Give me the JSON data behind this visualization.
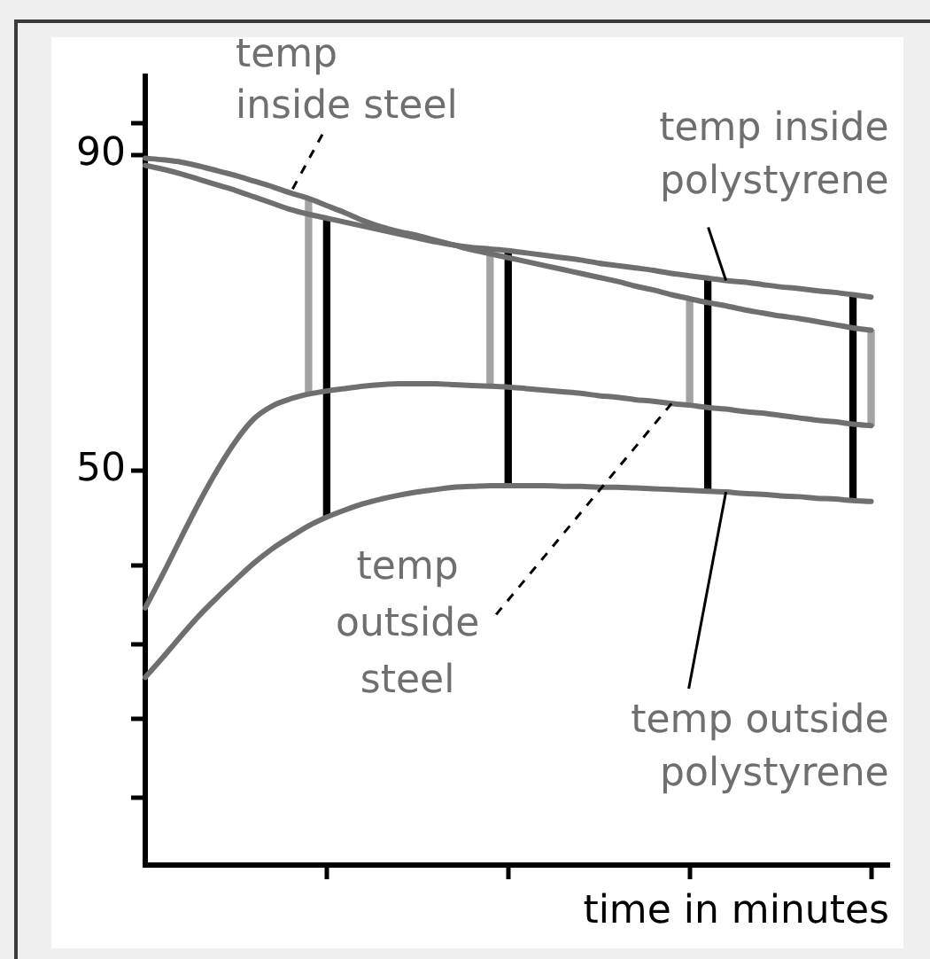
{
  "chart_data": {
    "type": "line",
    "xlabel": "time in minutes",
    "categories": [
      null,
      null,
      null,
      null,
      null,
      null,
      null,
      null,
      null,
      null,
      null,
      null,
      null,
      null,
      null,
      null,
      null,
      null,
      null,
      null,
      null,
      null,
      null,
      null,
      null,
      null,
      null,
      null,
      null,
      null,
      null,
      null,
      null,
      null,
      null,
      null,
      null,
      null,
      null,
      null,
      null,
      null
    ],
    "ylim": [
      0,
      100
    ],
    "yticks": [
      {
        "value": 8.5,
        "label": null
      },
      {
        "value": 18.5,
        "label": null
      },
      {
        "value": 28,
        "label": null
      },
      {
        "value": 38,
        "label": null
      },
      50,
      90,
      {
        "value": 94,
        "label": null
      }
    ],
    "tick_labels": "y",
    "grid": false,
    "marker": "none",
    "series": [
      {
        "name": "temp inside steel",
        "color": "#6f6f6f",
        "values": [
          89.6,
          89.4,
          89.1,
          88.6,
          88.0,
          87.4,
          86.7,
          86.0,
          85.2,
          84.5,
          83.6,
          82.7,
          81.7,
          80.9,
          80.3,
          79.8,
          79.2,
          78.6,
          78.0,
          77.5,
          77.0,
          76.5,
          76.0,
          75.5,
          75.0,
          74.5,
          74.0,
          73.4,
          72.9,
          72.3,
          71.8,
          71.3,
          70.9,
          70.4,
          70.0,
          69.6,
          69.3,
          68.9,
          68.5,
          68.1,
          67.8,
          null
        ]
      },
      {
        "name": "temp inside polystyrene",
        "color": "#6f6f6f",
        "values": [
          88.7,
          88.2,
          87.6,
          86.9,
          86.2,
          85.5,
          84.7,
          83.9,
          83.1,
          82.5,
          82.0,
          81.5,
          81.0,
          80.5,
          80.0,
          79.5,
          79.0,
          78.6,
          78.3,
          78.1,
          77.9,
          77.6,
          77.3,
          77.0,
          76.7,
          76.3,
          76.0,
          75.7,
          75.4,
          75.0,
          74.7,
          74.4,
          74.1,
          73.9,
          73.6,
          73.3,
          73.1,
          72.8,
          72.6,
          72.3,
          72.0,
          null
        ]
      },
      {
        "name": "temp outside steel",
        "color": "#6f6f6f",
        "values": [
          32.6,
          37.0,
          41.6,
          46.1,
          50.2,
          53.8,
          56.6,
          58.2,
          59.1,
          59.7,
          60.1,
          60.4,
          60.7,
          60.9,
          61.0,
          61.0,
          61.0,
          60.9,
          60.8,
          60.7,
          60.6,
          60.4,
          60.2,
          60.0,
          59.8,
          59.5,
          59.3,
          59.0,
          58.8,
          58.5,
          58.3,
          58.0,
          57.8,
          57.5,
          57.3,
          57.0,
          56.7,
          56.4,
          56.2,
          55.9,
          55.7,
          null
        ]
      },
      {
        "name": "temp outside polystyrene",
        "color": "#6f6f6f",
        "values": [
          23.8,
          26.4,
          29.1,
          31.7,
          34.0,
          36.2,
          38.3,
          40.1,
          41.6,
          43.0,
          44.1,
          45.0,
          45.8,
          46.4,
          46.9,
          47.3,
          47.6,
          47.9,
          48.0,
          48.1,
          48.1,
          48.1,
          48.1,
          48.0,
          48.0,
          47.9,
          47.9,
          47.8,
          47.7,
          47.6,
          47.5,
          47.4,
          47.3,
          47.1,
          47.0,
          46.8,
          46.7,
          46.5,
          46.4,
          46.2,
          46.1,
          null
        ]
      },
      {
        "type": "bar",
        "color": "#000000",
        "values": [
          null,
          null,
          null,
          null,
          null,
          null,
          null,
          null,
          null,
          null,
          37.9,
          null,
          null,
          null,
          null,
          null,
          null,
          null,
          null,
          null,
          29.8,
          null,
          null,
          null,
          null,
          null,
          null,
          null,
          null,
          null,
          null,
          27.0,
          null,
          null,
          null,
          null,
          null,
          null,
          null,
          26.1,
          null,
          null
        ],
        "base": [
          null,
          null,
          null,
          null,
          null,
          null,
          null,
          null,
          null,
          null,
          44.1,
          null,
          null,
          null,
          null,
          null,
          null,
          null,
          null,
          null,
          48.1,
          null,
          null,
          null,
          null,
          null,
          null,
          null,
          null,
          null,
          null,
          47.4,
          null,
          null,
          null,
          null,
          null,
          null,
          null,
          46.2,
          null,
          null
        ]
      },
      {
        "type": "bar",
        "color": "#a3a3a3",
        "values": [
          null,
          null,
          null,
          null,
          null,
          null,
          null,
          null,
          null,
          24.8,
          null,
          null,
          null,
          null,
          null,
          null,
          null,
          null,
          null,
          16.8,
          null,
          null,
          null,
          null,
          null,
          null,
          null,
          null,
          null,
          null,
          13.5,
          null,
          null,
          null,
          null,
          null,
          null,
          null,
          null,
          null,
          12.1,
          null
        ],
        "base": [
          null,
          null,
          null,
          null,
          null,
          null,
          null,
          null,
          null,
          59.7,
          null,
          null,
          null,
          null,
          null,
          null,
          null,
          null,
          null,
          60.7,
          null,
          null,
          null,
          null,
          null,
          null,
          null,
          null,
          null,
          null,
          58.3,
          null,
          null,
          null,
          null,
          null,
          null,
          null,
          null,
          null,
          55.7,
          null
        ]
      }
    ]
  }
}
